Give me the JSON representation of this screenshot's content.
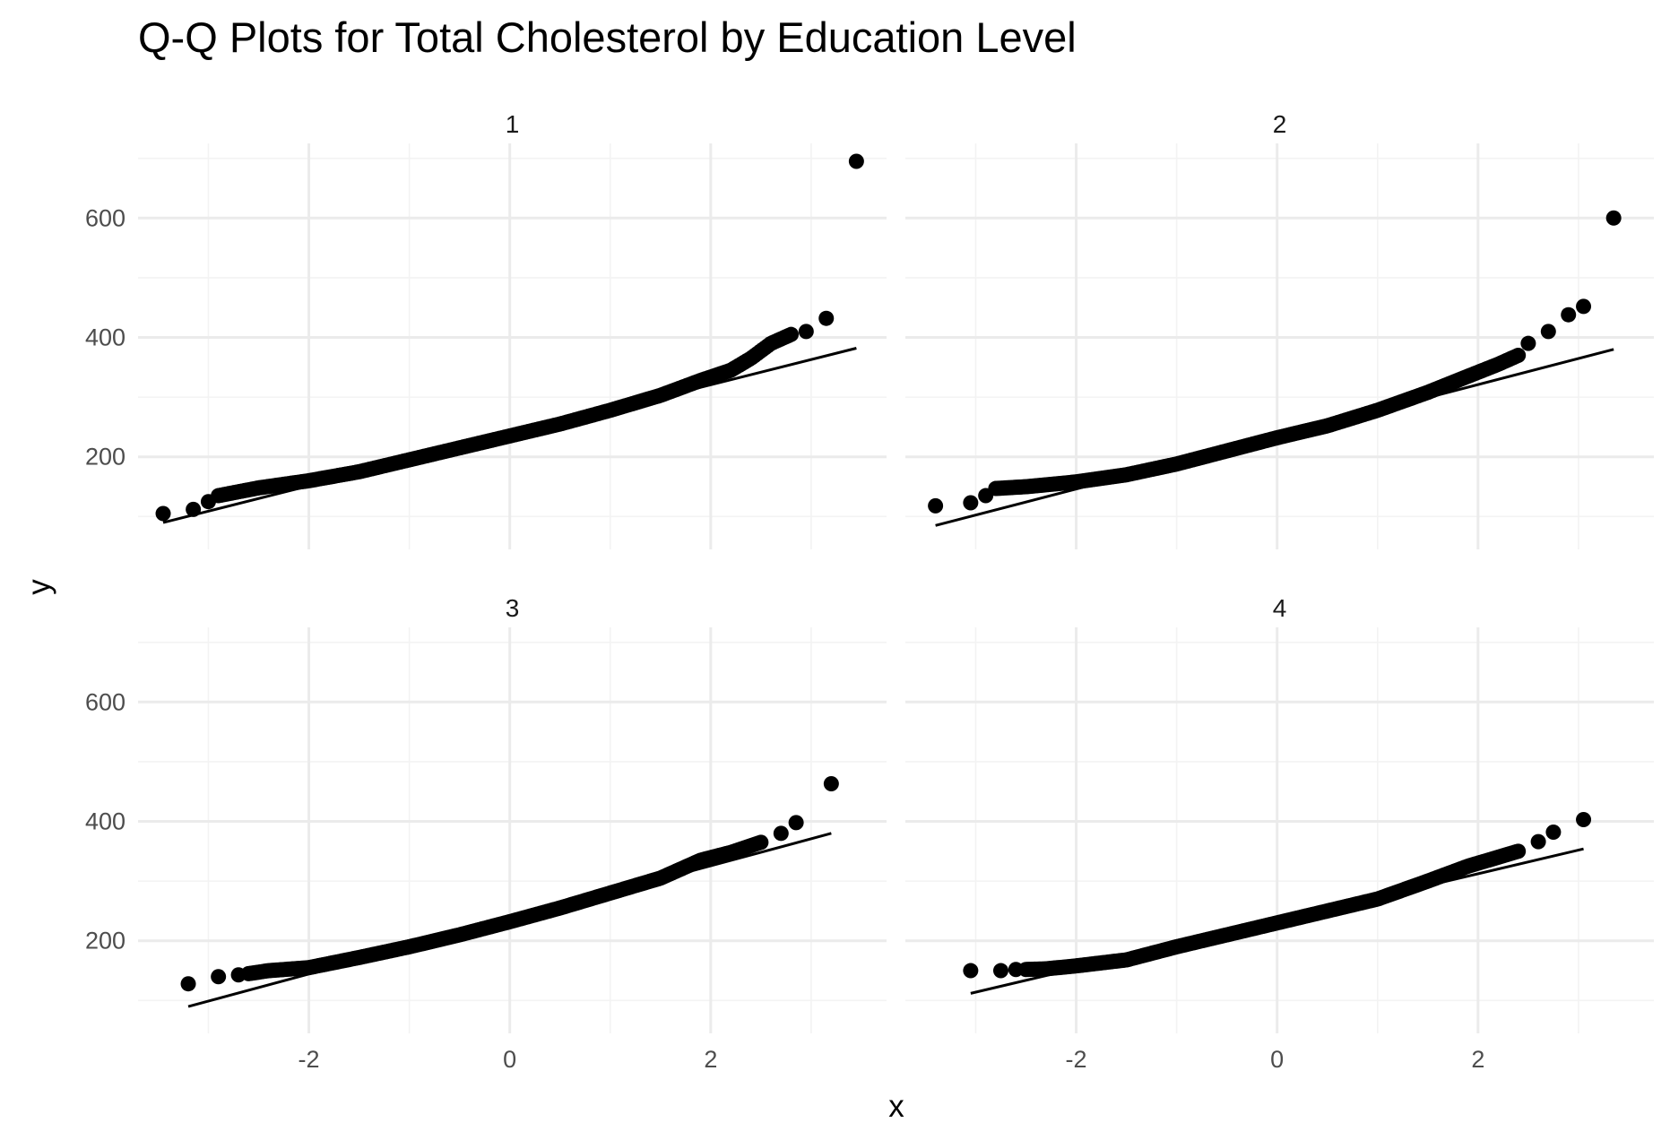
{
  "chart_data": {
    "type": "scatter",
    "title": "Q-Q Plots for Total Cholesterol by Education Level",
    "xlabel": "x",
    "ylabel": "y",
    "grid": true,
    "legend": "none",
    "x_ticks": [
      -2,
      0,
      2
    ],
    "y_ticks": [
      200,
      400,
      600
    ],
    "xlim": [
      -3.7,
      3.75
    ],
    "ylim": [
      45,
      725
    ],
    "colors": {
      "points": "#000000",
      "line": "#000000",
      "grid_major": "#ebebeb",
      "grid_minor": "#f3f3f3",
      "tick_text": "#4d4d4d"
    },
    "panels": [
      {
        "label": "1",
        "ref_line": {
          "x": [
            -3.45,
            3.45
          ],
          "y": [
            90,
            382
          ]
        },
        "outliers": {
          "x": [
            -3.45,
            -3.15,
            -3.0,
            2.95,
            3.15,
            3.45
          ],
          "y": [
            105,
            112,
            125,
            410,
            432,
            695
          ]
        },
        "curve": {
          "x": [
            -2.9,
            -2.5,
            -2.0,
            -1.5,
            -1.0,
            -0.5,
            0.0,
            0.5,
            1.0,
            1.5,
            1.9,
            2.2,
            2.4,
            2.6,
            2.8
          ],
          "y": [
            135,
            148,
            160,
            175,
            195,
            215,
            235,
            255,
            278,
            303,
            328,
            345,
            365,
            390,
            405
          ]
        }
      },
      {
        "label": "2",
        "ref_line": {
          "x": [
            -3.4,
            3.35
          ],
          "y": [
            85,
            380
          ]
        },
        "outliers": {
          "x": [
            -3.4,
            -3.05,
            -2.9,
            2.5,
            2.7,
            2.9,
            3.05,
            3.35
          ],
          "y": [
            118,
            123,
            135,
            390,
            410,
            438,
            452,
            600
          ]
        },
        "curve": {
          "x": [
            -2.8,
            -2.5,
            -2.0,
            -1.5,
            -1.0,
            -0.5,
            0.0,
            0.5,
            1.0,
            1.5,
            1.9,
            2.2,
            2.4
          ],
          "y": [
            147,
            150,
            158,
            170,
            188,
            210,
            232,
            252,
            278,
            308,
            335,
            355,
            370
          ]
        }
      },
      {
        "label": "3",
        "ref_line": {
          "x": [
            -3.2,
            3.2
          ],
          "y": [
            90,
            380
          ]
        },
        "outliers": {
          "x": [
            -3.2,
            -2.9,
            -2.7,
            2.7,
            2.85,
            3.2
          ],
          "y": [
            128,
            140,
            143,
            380,
            398,
            463
          ]
        },
        "curve": {
          "x": [
            -2.6,
            -2.4,
            -2.0,
            -1.5,
            -1.0,
            -0.5,
            0.0,
            0.5,
            1.0,
            1.5,
            1.9,
            2.2,
            2.5
          ],
          "y": [
            145,
            150,
            155,
            172,
            190,
            210,
            232,
            255,
            280,
            305,
            335,
            348,
            365
          ]
        }
      },
      {
        "label": "4",
        "ref_line": {
          "x": [
            -3.05,
            3.05
          ],
          "y": [
            112,
            354
          ]
        },
        "outliers": {
          "x": [
            -3.05,
            -2.75,
            -2.6,
            2.6,
            2.75,
            3.05
          ],
          "y": [
            150,
            150,
            152,
            366,
            382,
            403
          ]
        },
        "curve": {
          "x": [
            -2.5,
            -2.3,
            -2.0,
            -1.5,
            -1.0,
            -0.5,
            0.0,
            0.5,
            1.0,
            1.5,
            1.9,
            2.2,
            2.4
          ],
          "y": [
            152,
            153,
            158,
            168,
            190,
            210,
            230,
            250,
            270,
            300,
            325,
            340,
            350
          ]
        }
      }
    ]
  }
}
